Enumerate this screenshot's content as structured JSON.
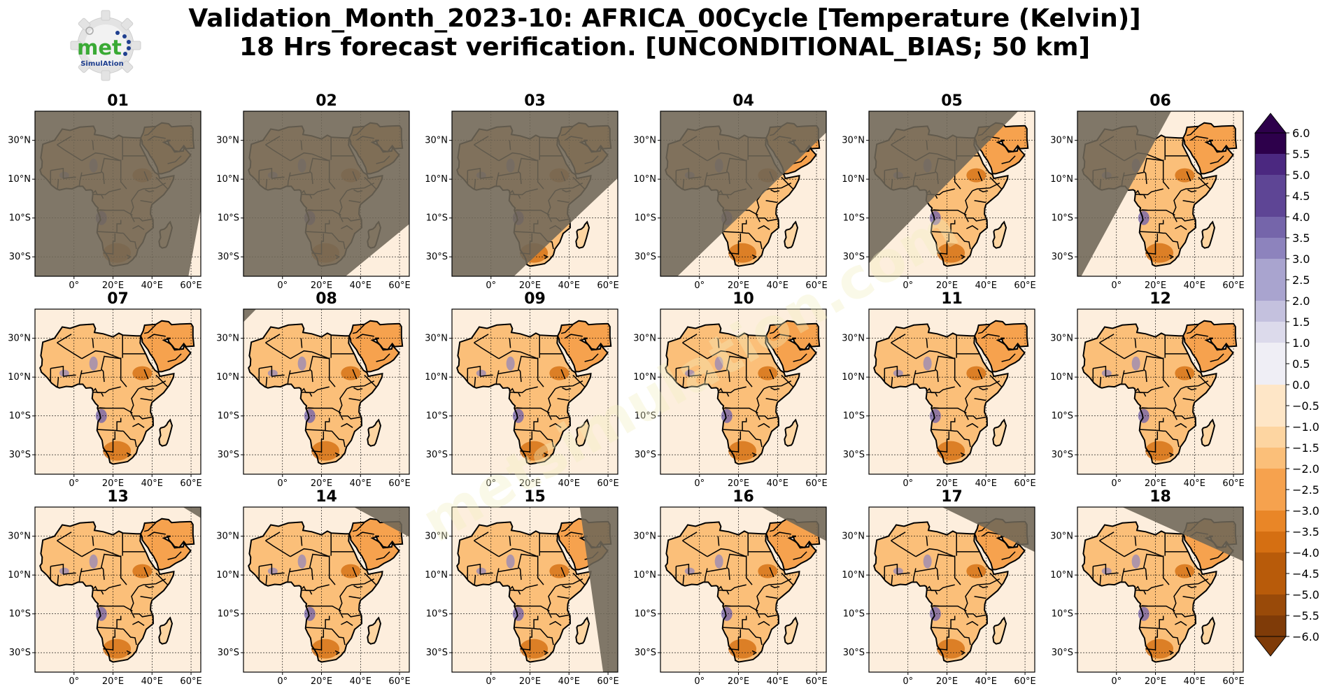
{
  "title": {
    "line1": "Validation_Month_2023-10: AFRICA_00Cycle [Temperature (Kelvin)]",
    "line2": "18 Hrs forecast verification. [UNCONDITIONAL_BIAS; 50 km]"
  },
  "logo": {
    "text": "met",
    "subtext": "SimulAtion"
  },
  "watermark": "metsimulation.com",
  "colors": {
    "gray_shade": "#6e6658",
    "ocean": "#fdeedd",
    "negative": [
      "#fee6c7",
      "#fdd5a1",
      "#fbbf79",
      "#f6a24e",
      "#e98627",
      "#d56f12",
      "#b85b0a",
      "#994a09",
      "#7f3b08"
    ],
    "positive": [
      "#efeef5",
      "#dcdaeb",
      "#c4c1de",
      "#a9a4cf",
      "#8d83bd",
      "#7565aa",
      "#5e4595",
      "#4b2880",
      "#2d004b"
    ]
  },
  "chart_data": {
    "type": "heatmap",
    "panels": [
      "01",
      "02",
      "03",
      "04",
      "05",
      "06",
      "07",
      "08",
      "09",
      "10",
      "11",
      "12",
      "13",
      "14",
      "15",
      "16",
      "17",
      "18"
    ],
    "x_ticks": [
      "0°",
      "20°E",
      "40°E",
      "60°E"
    ],
    "y_ticks": [
      "30°N",
      "10°N",
      "10°S",
      "30°S"
    ],
    "xlim": [
      -20,
      65
    ],
    "ylim": [
      -40,
      45
    ],
    "colorbar": {
      "ticks": [
        "6.0",
        "5.5",
        "5.0",
        "4.5",
        "4.0",
        "3.5",
        "3.0",
        "2.5",
        "2.0",
        "1.5",
        "1.0",
        "0.5",
        "0.0",
        "−0.5",
        "−1.0",
        "−1.5",
        "−2.0",
        "−2.5",
        "−3.0",
        "−3.5",
        "−4.0",
        "−4.5",
        "−5.0",
        "−5.5",
        "−6.0"
      ],
      "range": [
        -6.0,
        6.0
      ],
      "extend": "both"
    },
    "night_shading_lon_at_45N": [
      75,
      140,
      105,
      80,
      60,
      30,
      -20,
      -10,
      -60,
      -60,
      -60,
      -60,
      50,
      30,
      45,
      25,
      10,
      -5
    ],
    "night_shading_lon_at_40S": [
      58,
      28,
      8,
      -15,
      -30,
      -20,
      -25,
      -100,
      -100,
      -100,
      -100,
      -100,
      200,
      200,
      58,
      200,
      200,
      200
    ]
  }
}
